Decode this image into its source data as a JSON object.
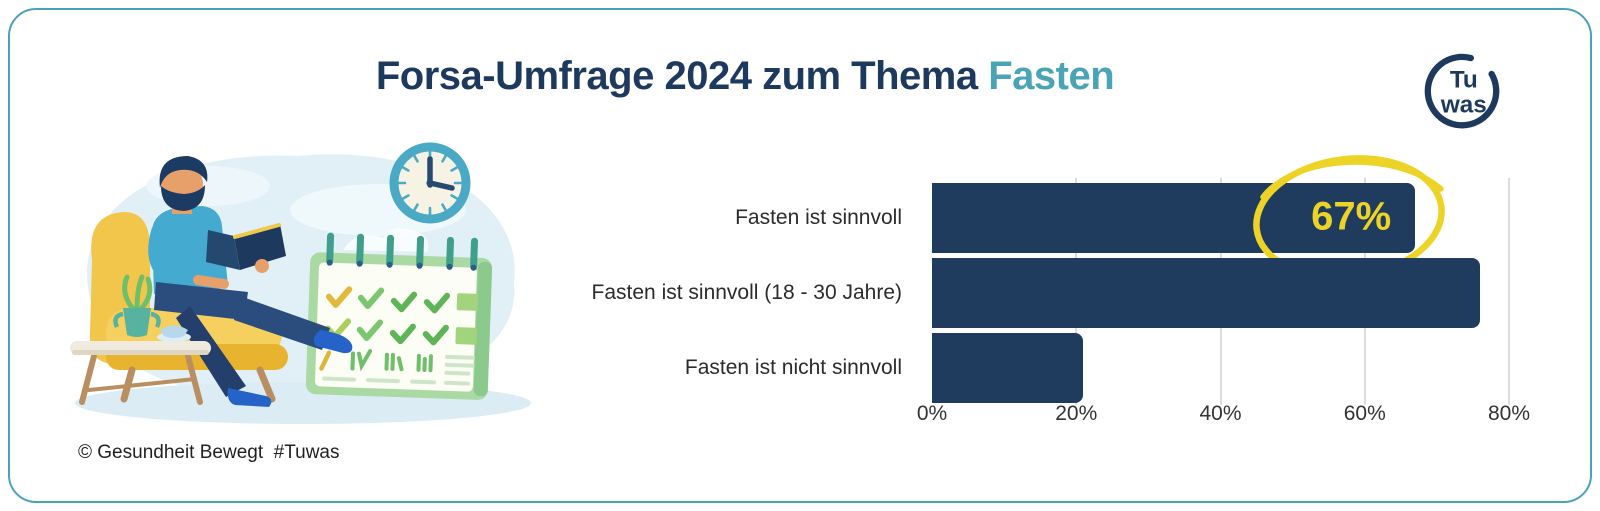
{
  "card": {
    "border_color": "#4aa3b4",
    "background": "#ffffff"
  },
  "header": {
    "title_main": "Forsa-Umfrage 2024 zum Thema ",
    "title_highlight": "Fasten",
    "title_color": "#1d3a5e",
    "highlight_color": "#4aa4b5"
  },
  "logo": {
    "line1": "Tu",
    "line2": "was",
    "color": "#1d3a5e"
  },
  "footer": {
    "credit": "© Gesundheit Bewegt  #Tuwas"
  },
  "illustration": {
    "description": "Man with beard reading a book in a yellow armchair beside a wall clock, desk calendar with checkmarks, and side table with plant and cup"
  },
  "chart_data": {
    "type": "bar",
    "orientation": "horizontal",
    "title": "",
    "xlabel": "",
    "ylabel": "",
    "categories": [
      "Fasten ist sinnvoll",
      "Fasten ist sinnvoll (18 - 30 Jahre)",
      "Fasten ist nicht sinnvoll"
    ],
    "values": [
      67,
      76,
      21
    ],
    "unit": "%",
    "xlim": [
      0,
      80
    ],
    "ticks": [
      "0%",
      "20%",
      "40%",
      "60%",
      "80%"
    ],
    "tick_values": [
      0,
      20,
      40,
      60,
      80
    ],
    "grid": true,
    "legend": false,
    "bar_color": "#1f3c5f",
    "annotation": {
      "row_index": 0,
      "text": "67%",
      "color": "#eed327",
      "style": "hand-drawn-circle"
    }
  }
}
